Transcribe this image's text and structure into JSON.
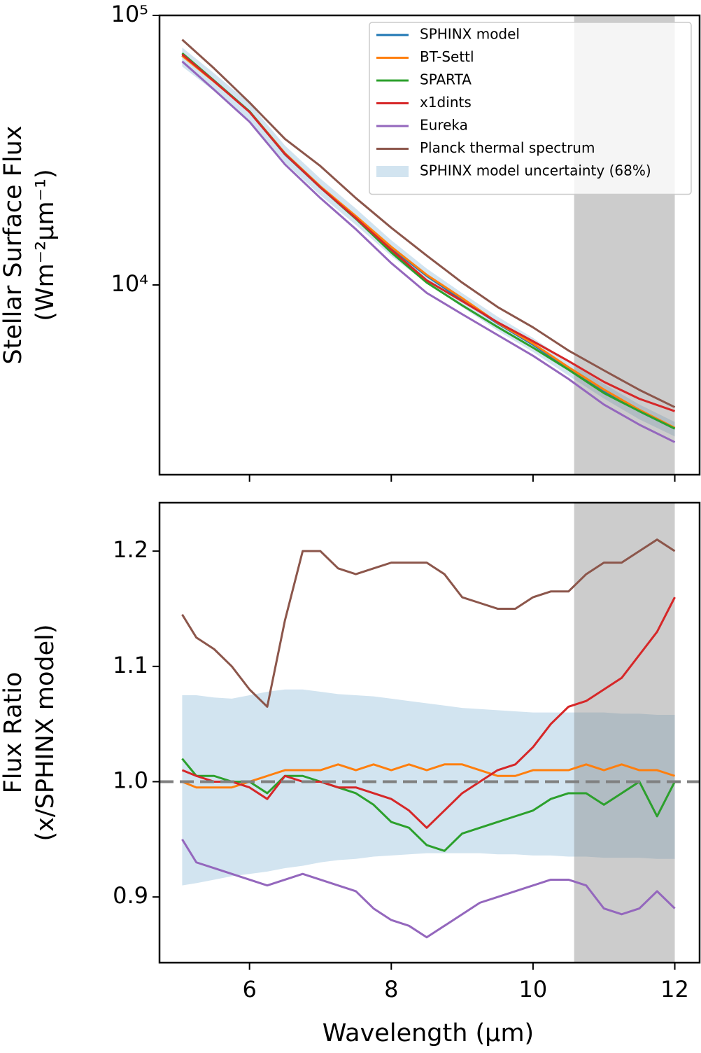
{
  "chart_data": [
    {
      "type": "line",
      "ylabel": [
        "Stellar Surface Flux",
        "(Wm⁻²μm⁻¹)"
      ],
      "log_scale": true,
      "xlim": [
        4.73,
        12.35
      ],
      "xticks": [
        6,
        8,
        10,
        12
      ],
      "ylim": [
        1977,
        100000
      ],
      "yticks": [
        {
          "value": 10000,
          "label": "10⁴"
        },
        {
          "value": 100000,
          "label": "10⁵"
        }
      ],
      "highlight_span": [
        10.58,
        12.0
      ],
      "highlight_color": "#808080",
      "highlight_alpha": 0.4,
      "legend": "upper right",
      "x": [
        5.05,
        5.5,
        6,
        6.5,
        7,
        7.5,
        8,
        8.5,
        9,
        9.5,
        10,
        10.5,
        11,
        11.5,
        12
      ],
      "series": [
        {
          "name": "SPHINX model",
          "color": "#1f77b4",
          "values": [
            71000,
            57000,
            44000,
            30500,
            23000,
            17800,
            13700,
            10800,
            8800,
            7200,
            6000,
            4900,
            4050,
            3400,
            2930
          ]
        },
        {
          "name": "BT-Settl",
          "color": "#ff7f0e",
          "values": [
            70800,
            56800,
            44000,
            30800,
            23200,
            18000,
            13850,
            10900,
            8930,
            7240,
            6060,
            4950,
            4090,
            3440,
            2950
          ]
        },
        {
          "name": "SPARTA",
          "color": "#2ca02c",
          "values": [
            72400,
            57300,
            44000,
            30600,
            23000,
            17600,
            13200,
            10200,
            8400,
            6980,
            5850,
            4850,
            3970,
            3400,
            2930
          ]
        },
        {
          "name": "x1dints",
          "color": "#d62728",
          "values": [
            71700,
            57000,
            43800,
            30600,
            23000,
            17700,
            13500,
            10400,
            8710,
            7270,
            6180,
            5220,
            4370,
            3780,
            3400
          ]
        },
        {
          "name": "Eureka",
          "color": "#9467bd",
          "values": [
            67500,
            53000,
            40300,
            28000,
            21000,
            16100,
            12050,
            9340,
            7790,
            6520,
            5460,
            4480,
            3600,
            3030,
            2610
          ]
        },
        {
          "name": "Planck thermal spectrum",
          "color": "#8c564b",
          "values": [
            81300,
            63600,
            47500,
            34800,
            27600,
            21000,
            16300,
            12850,
            10200,
            8280,
            6960,
            5710,
            4820,
            4080,
            3520
          ]
        }
      ],
      "band": {
        "name": "SPHINX model uncertainty (68%)",
        "color": "#1f77b4",
        "alpha": 0.2,
        "upper": [
          76000,
          61000,
          47200,
          32900,
          24800,
          19200,
          14650,
          11500,
          9330,
          7630,
          6360,
          5190,
          4290,
          3600,
          3100
        ],
        "lower": [
          64600,
          52400,
          40800,
          28400,
          21500,
          16700,
          12800,
          10150,
          8270,
          6770,
          5640,
          4610,
          3790,
          3170,
          2740
        ]
      }
    },
    {
      "type": "line",
      "ylabel": [
        "Flux Ratio",
        "(x/SPHINX model)"
      ],
      "xlabel": "Wavelength (μm)",
      "xlim": [
        4.73,
        12.35
      ],
      "xticks": [
        6,
        8,
        10,
        12
      ],
      "ylim": [
        0.843,
        1.242
      ],
      "yticks": [
        0.9,
        {
          "value": 1,
          "label": "1.0"
        },
        1.1,
        1.2
      ],
      "highlight_span": [
        10.58,
        12.0
      ],
      "highlight_color": "#808080",
      "highlight_alpha": 0.4,
      "reference_line": {
        "y": 1,
        "color": "#808080"
      },
      "x": [
        5.05,
        5.25,
        5.5,
        5.75,
        6,
        6.25,
        6.5,
        6.75,
        7,
        7.25,
        7.5,
        7.75,
        8,
        8.25,
        8.5,
        8.75,
        9,
        9.25,
        9.5,
        9.75,
        10,
        10.25,
        10.5,
        10.75,
        11,
        11.25,
        11.5,
        11.75,
        12
      ],
      "series": [
        {
          "color": "#ff7f0e",
          "values": [
            1.0,
            0.995,
            0.995,
            0.995,
            1.0,
            1.005,
            1.01,
            1.01,
            1.01,
            1.015,
            1.01,
            1.015,
            1.01,
            1.015,
            1.01,
            1.015,
            1.015,
            1.01,
            1.005,
            1.005,
            1.01,
            1.01,
            1.01,
            1.015,
            1.01,
            1.015,
            1.01,
            1.01,
            1.005
          ]
        },
        {
          "color": "#2ca02c",
          "values": [
            1.02,
            1.005,
            1.005,
            1.0,
            1.0,
            0.99,
            1.005,
            1.005,
            1.0,
            0.995,
            0.99,
            0.98,
            0.965,
            0.96,
            0.945,
            0.94,
            0.955,
            0.96,
            0.965,
            0.97,
            0.975,
            0.985,
            0.99,
            0.99,
            0.98,
            0.99,
            1.0,
            0.97,
            1.0
          ]
        },
        {
          "color": "#d62728",
          "values": [
            1.01,
            1.005,
            1.0,
            1.0,
            0.995,
            0.985,
            1.005,
            1.0,
            1.0,
            0.995,
            0.995,
            0.99,
            0.985,
            0.975,
            0.96,
            0.975,
            0.99,
            1.0,
            1.01,
            1.015,
            1.03,
            1.05,
            1.065,
            1.07,
            1.08,
            1.09,
            1.11,
            1.13,
            1.16
          ]
        },
        {
          "color": "#9467bd",
          "values": [
            0.95,
            0.93,
            0.925,
            0.92,
            0.915,
            0.91,
            0.915,
            0.92,
            0.915,
            0.91,
            0.905,
            0.89,
            0.88,
            0.875,
            0.865,
            0.875,
            0.885,
            0.895,
            0.9,
            0.905,
            0.91,
            0.915,
            0.915,
            0.91,
            0.89,
            0.885,
            0.89,
            0.905,
            0.89
          ]
        },
        {
          "color": "#8c564b",
          "values": [
            1.145,
            1.125,
            1.115,
            1.1,
            1.08,
            1.065,
            1.14,
            1.2,
            1.2,
            1.185,
            1.18,
            1.185,
            1.19,
            1.19,
            1.19,
            1.18,
            1.16,
            1.155,
            1.15,
            1.15,
            1.16,
            1.165,
            1.165,
            1.18,
            1.19,
            1.19,
            1.2,
            1.21,
            1.2
          ]
        }
      ],
      "band": {
        "color": "#1f77b4",
        "alpha": 0.2,
        "upper": [
          1.075,
          1.075,
          1.073,
          1.072,
          1.075,
          1.078,
          1.08,
          1.08,
          1.078,
          1.076,
          1.075,
          1.074,
          1.072,
          1.07,
          1.068,
          1.066,
          1.064,
          1.063,
          1.062,
          1.061,
          1.06,
          1.06,
          1.06,
          1.06,
          1.06,
          1.059,
          1.059,
          1.058,
          1.058
        ],
        "lower": [
          0.91,
          0.912,
          0.915,
          0.918,
          0.92,
          0.922,
          0.925,
          0.927,
          0.93,
          0.932,
          0.933,
          0.935,
          0.936,
          0.937,
          0.938,
          0.938,
          0.938,
          0.938,
          0.937,
          0.937,
          0.936,
          0.936,
          0.935,
          0.935,
          0.934,
          0.934,
          0.934,
          0.933,
          0.933
        ]
      }
    }
  ]
}
